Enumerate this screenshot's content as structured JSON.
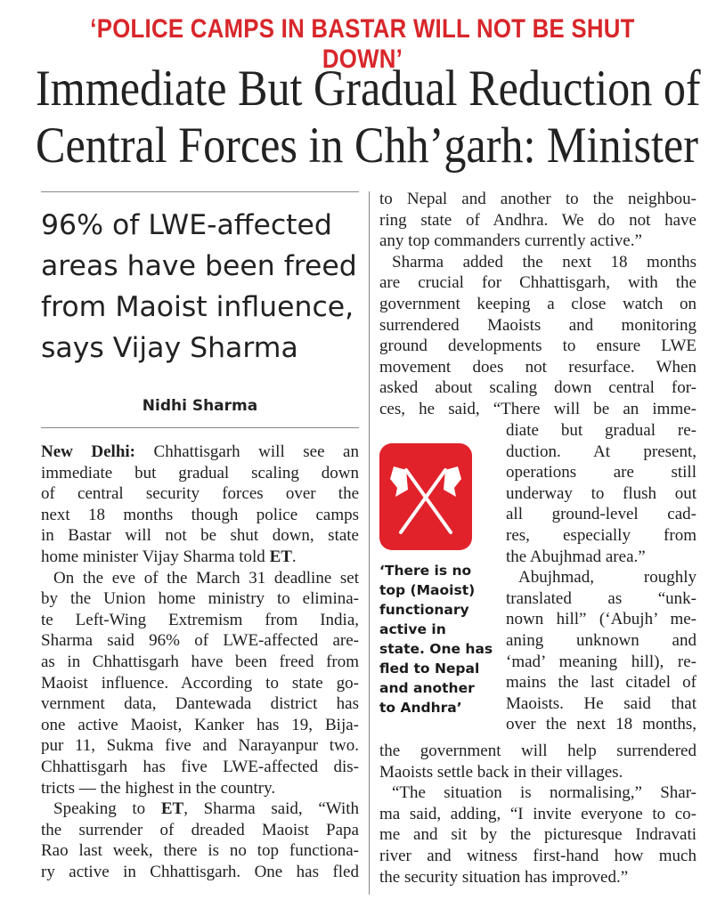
{
  "kicker": "‘POLICE CAMPS IN BASTAR WILL NOT BE SHUT DOWN’",
  "headline": {
    "line1": "Immediate But Gradual Reduction of",
    "line2": "Central Forces in Chh’garh: Minister"
  },
  "deck": {
    "line1": "96% of LWE-affected",
    "line2": "areas have been freed",
    "line3": "from Maoist influence,",
    "line4": "says Vijay Sharma"
  },
  "byline": "Nidhi Sharma",
  "col1": {
    "dateline": "New Delhi:",
    "l1": "Chhattisgarh will see an",
    "l2": "immediate but gradual scaling down",
    "l3": "of central security forces over the",
    "l4": "next 18 months though police camps",
    "l5": "in Bastar will not be shut down, state",
    "l6": "home minister Vijay Sharma told",
    "et1": "ET",
    "dot": ".",
    "l7": "On the eve of the March 31 deadline set",
    "l8": "by the Union home ministry to elimina-",
    "l9": "te Left-Wing Extremism from India,",
    "l10": "Sharma said 96% of LWE-affected are-",
    "l11": "as in Chhattisgarh have been freed from",
    "l12": "Maoist influence. According to state go-",
    "l13": "vernment data, Dantewada district has",
    "l14": "one active Maoist, Kanker has 19, Bija-",
    "l15": "pur 11, Sukma five and Narayanpur two.",
    "l16": "Chhattisgarh has five LWE-affected dis-",
    "l17": "tricts — the highest in the country.",
    "l18a": "Speaking to",
    "et2": "ET",
    "l18b": ", Sharma said, “With",
    "l19": "the surrender of dreaded Maoist Papa",
    "l20": "Rao last week, there is no top functiona-",
    "l21": "ry active in Chhattisgarh. One has fled"
  },
  "col2a": {
    "l1": "to Nepal and another to the neighbou-",
    "l2": "ring state of  Andhra. We do not have",
    "l3": "any top commanders currently active.”",
    "l4": "Sharma added the next 18 months",
    "l5": "are crucial for Chhattisgarh, with the",
    "l6": "government keeping a close watch on",
    "l7": "surrendered Maoists and monitoring",
    "l8": "ground developments to ensure LWE",
    "l9": "movement does not resurface. When",
    "l10": "asked about scaling down central for-",
    "l11": "ces, he said, “There will be an imme-"
  },
  "col2b": {
    "l1": "diate but gradual re-",
    "l2": "duction. At present,",
    "l3": "operations are still",
    "l4": "underway to flush out",
    "l5": "all ground-level cad-",
    "l6": "res, especially from",
    "l7": "the Abujhmad area.”",
    "l8": "Abujhmad, roughly",
    "l9": "translated as “unk-",
    "l10": "nown hill” (‘Abujh’ me-",
    "l11": "aning unknown and",
    "l12": "‘mad’ meaning hill), re-",
    "l13": "mains the last citadel of",
    "l14": "Maoists. He said that",
    "l15": "over the next 18 months,"
  },
  "col2c": {
    "l1": "the government will help surrendered",
    "l2": "Maoists settle back in their villages.",
    "l3": "“The situation is normalising,” Shar-",
    "l4": "ma said, adding, “I invite everyone to co-",
    "l5": "me and sit by the picturesque Indravati",
    "l6": "river and witness first-hand how much",
    "l7": "the security situation has improved.”"
  },
  "pullquote": {
    "l1": "‘There is no",
    "l2": "top (Maoist)",
    "l3": "functionary",
    "l4": "active in",
    "l5": "state. One has",
    "l6": "fled to Nepal",
    "l7": "and another",
    "l8": "to Andhra’"
  },
  "colors": {
    "accent": "#d8262b",
    "logo_bg": "#e1222b"
  },
  "icon": "crossed-flags-icon"
}
